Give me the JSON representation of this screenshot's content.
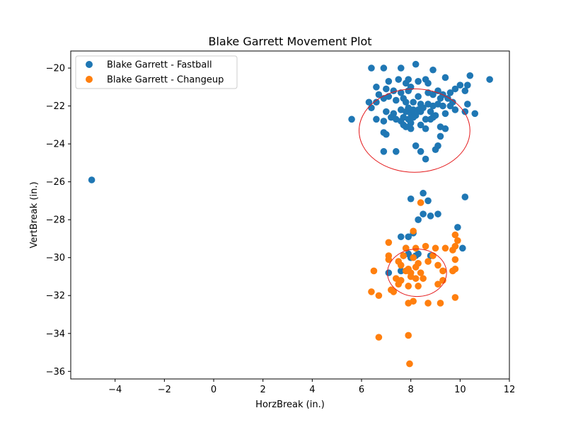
{
  "chart_data": {
    "type": "scatter",
    "title": "Blake Garrett Movement Plot",
    "xlabel": "HorzBreak (in.)",
    "ylabel": "VertBreak (in.)",
    "xlim": [
      -5.8,
      12.0
    ],
    "ylim": [
      -36.4,
      -19.1
    ],
    "xticks": [
      -4,
      -2,
      0,
      2,
      4,
      6,
      8,
      10,
      12
    ],
    "yticks": [
      -36,
      -34,
      -32,
      -30,
      -28,
      -26,
      -24,
      -22,
      -20
    ],
    "grid": false,
    "legend_position": "top-left",
    "series": [
      {
        "name": "Blake Garrett - Fastball",
        "color": "#1f77b4",
        "points": [
          [
            -4.95,
            -25.9
          ],
          [
            6.4,
            -20.0
          ],
          [
            6.9,
            -20.0
          ],
          [
            7.6,
            -20.0
          ],
          [
            8.2,
            -19.8
          ],
          [
            8.9,
            -20.1
          ],
          [
            9.4,
            -20.5
          ],
          [
            10.4,
            -20.4
          ],
          [
            11.2,
            -20.6
          ],
          [
            7.1,
            -20.7
          ],
          [
            7.5,
            -20.6
          ],
          [
            7.8,
            -20.8
          ],
          [
            7.9,
            -20.6
          ],
          [
            8.3,
            -20.7
          ],
          [
            8.6,
            -20.6
          ],
          [
            8.7,
            -20.8
          ],
          [
            9.1,
            -21.2
          ],
          [
            9.3,
            -21.4
          ],
          [
            9.6,
            -21.3
          ],
          [
            9.8,
            -21.1
          ],
          [
            10.0,
            -20.9
          ],
          [
            10.3,
            -20.9
          ],
          [
            10.2,
            -21.2
          ],
          [
            6.6,
            -21.0
          ],
          [
            6.7,
            -21.4
          ],
          [
            7.0,
            -21.1
          ],
          [
            7.3,
            -21.2
          ],
          [
            7.6,
            -21.3
          ],
          [
            7.9,
            -21.2
          ],
          [
            8.0,
            -21.0
          ],
          [
            8.3,
            -21.5
          ],
          [
            8.7,
            -21.3
          ],
          [
            8.9,
            -21.4
          ],
          [
            9.2,
            -21.6
          ],
          [
            9.5,
            -21.6
          ],
          [
            9.7,
            -21.8
          ],
          [
            6.3,
            -21.8
          ],
          [
            6.6,
            -21.8
          ],
          [
            6.9,
            -21.6
          ],
          [
            7.1,
            -21.5
          ],
          [
            7.4,
            -21.7
          ],
          [
            7.7,
            -21.6
          ],
          [
            7.8,
            -21.8
          ],
          [
            8.1,
            -21.8
          ],
          [
            8.4,
            -21.9
          ],
          [
            8.7,
            -21.9
          ],
          [
            8.9,
            -22.0
          ],
          [
            9.1,
            -21.9
          ],
          [
            9.3,
            -22.0
          ],
          [
            9.6,
            -22.0
          ],
          [
            9.8,
            -22.2
          ],
          [
            10.2,
            -22.3
          ],
          [
            10.6,
            -22.4
          ],
          [
            10.3,
            -21.9
          ],
          [
            6.4,
            -22.1
          ],
          [
            7.0,
            -22.3
          ],
          [
            7.3,
            -22.4
          ],
          [
            7.6,
            -22.2
          ],
          [
            7.8,
            -22.3
          ],
          [
            7.9,
            -22.1
          ],
          [
            8.0,
            -22.4
          ],
          [
            8.1,
            -22.2
          ],
          [
            8.2,
            -22.5
          ],
          [
            8.3,
            -22.2
          ],
          [
            8.4,
            -22.3
          ],
          [
            8.5,
            -22.1
          ],
          [
            8.8,
            -22.3
          ],
          [
            9.0,
            -22.5
          ],
          [
            9.4,
            -22.4
          ],
          [
            5.6,
            -22.7
          ],
          [
            6.6,
            -22.7
          ],
          [
            6.9,
            -22.8
          ],
          [
            7.2,
            -22.6
          ],
          [
            7.4,
            -22.7
          ],
          [
            7.6,
            -22.8
          ],
          [
            7.7,
            -22.6
          ],
          [
            7.9,
            -22.7
          ],
          [
            8.0,
            -22.9
          ],
          [
            8.1,
            -22.6
          ],
          [
            8.6,
            -22.7
          ],
          [
            8.8,
            -22.7
          ],
          [
            8.9,
            -22.6
          ],
          [
            7.7,
            -23.0
          ],
          [
            7.8,
            -23.1
          ],
          [
            8.0,
            -23.2
          ],
          [
            8.4,
            -23.0
          ],
          [
            8.6,
            -23.2
          ],
          [
            9.2,
            -23.1
          ],
          [
            9.4,
            -23.2
          ],
          [
            6.9,
            -23.4
          ],
          [
            7.0,
            -23.5
          ],
          [
            9.2,
            -23.6
          ],
          [
            8.2,
            -24.1
          ],
          [
            9.1,
            -24.1
          ],
          [
            9.0,
            -24.3
          ],
          [
            6.9,
            -24.4
          ],
          [
            7.4,
            -24.4
          ],
          [
            8.4,
            -24.4
          ],
          [
            8.6,
            -24.8
          ],
          [
            8.5,
            -26.6
          ],
          [
            8.0,
            -26.9
          ],
          [
            8.7,
            -27.0
          ],
          [
            10.2,
            -26.8
          ],
          [
            8.5,
            -27.7
          ],
          [
            8.8,
            -27.8
          ],
          [
            9.1,
            -27.7
          ],
          [
            8.3,
            -28.0
          ],
          [
            9.9,
            -28.4
          ],
          [
            7.6,
            -28.9
          ],
          [
            7.9,
            -28.9
          ],
          [
            8.1,
            -28.7
          ],
          [
            7.8,
            -29.5
          ],
          [
            7.9,
            -29.8
          ],
          [
            8.3,
            -29.8
          ],
          [
            8.8,
            -29.9
          ],
          [
            7.7,
            -29.9
          ],
          [
            8.0,
            -30.0
          ],
          [
            10.1,
            -29.5
          ],
          [
            7.1,
            -30.8
          ],
          [
            7.6,
            -30.7
          ],
          [
            8.0,
            -30.0
          ],
          [
            8.2,
            -29.9
          ]
        ]
      },
      {
        "name": "Blake Garrett - Changeup",
        "color": "#ff7f0e",
        "points": [
          [
            8.4,
            -27.1
          ],
          [
            8.1,
            -28.6
          ],
          [
            9.8,
            -28.8
          ],
          [
            9.9,
            -29.1
          ],
          [
            7.1,
            -29.2
          ],
          [
            7.8,
            -29.5
          ],
          [
            8.2,
            -29.5
          ],
          [
            8.6,
            -29.4
          ],
          [
            9.0,
            -29.5
          ],
          [
            9.4,
            -29.5
          ],
          [
            9.7,
            -29.6
          ],
          [
            9.8,
            -29.4
          ],
          [
            7.1,
            -29.9
          ],
          [
            7.7,
            -29.9
          ],
          [
            8.1,
            -30.0
          ],
          [
            8.9,
            -29.9
          ],
          [
            7.1,
            -30.1
          ],
          [
            7.5,
            -30.2
          ],
          [
            8.3,
            -30.3
          ],
          [
            8.7,
            -30.2
          ],
          [
            9.1,
            -30.4
          ],
          [
            9.8,
            -30.1
          ],
          [
            7.6,
            -30.4
          ],
          [
            7.9,
            -30.6
          ],
          [
            8.2,
            -30.5
          ],
          [
            6.5,
            -30.7
          ],
          [
            7.8,
            -30.7
          ],
          [
            8.0,
            -30.8
          ],
          [
            8.4,
            -30.8
          ],
          [
            9.3,
            -30.7
          ],
          [
            9.7,
            -30.7
          ],
          [
            9.8,
            -30.6
          ],
          [
            7.4,
            -31.1
          ],
          [
            7.6,
            -31.2
          ],
          [
            8.0,
            -31.0
          ],
          [
            8.2,
            -31.1
          ],
          [
            8.5,
            -31.1
          ],
          [
            9.3,
            -31.2
          ],
          [
            7.5,
            -31.4
          ],
          [
            7.9,
            -31.5
          ],
          [
            8.3,
            -31.5
          ],
          [
            9.1,
            -31.4
          ],
          [
            6.4,
            -31.8
          ],
          [
            7.2,
            -31.7
          ],
          [
            7.3,
            -31.8
          ],
          [
            6.7,
            -32.0
          ],
          [
            8.1,
            -32.3
          ],
          [
            7.9,
            -32.4
          ],
          [
            8.7,
            -32.4
          ],
          [
            9.2,
            -32.4
          ],
          [
            9.8,
            -32.1
          ],
          [
            7.9,
            -34.1
          ],
          [
            6.7,
            -34.2
          ],
          [
            7.95,
            -35.6
          ]
        ]
      }
    ],
    "ellipses": [
      {
        "series": "Blake Garrett - Fastball",
        "color": "#e41a1c",
        "center": [
          8.15,
          -23.3
        ],
        "rx": 2.25,
        "ry": 2.2
      },
      {
        "series": "Blake Garrett - Changeup",
        "color": "#e41a1c",
        "center": [
          8.25,
          -30.8
        ],
        "rx": 1.2,
        "ry": 1.25
      }
    ]
  }
}
